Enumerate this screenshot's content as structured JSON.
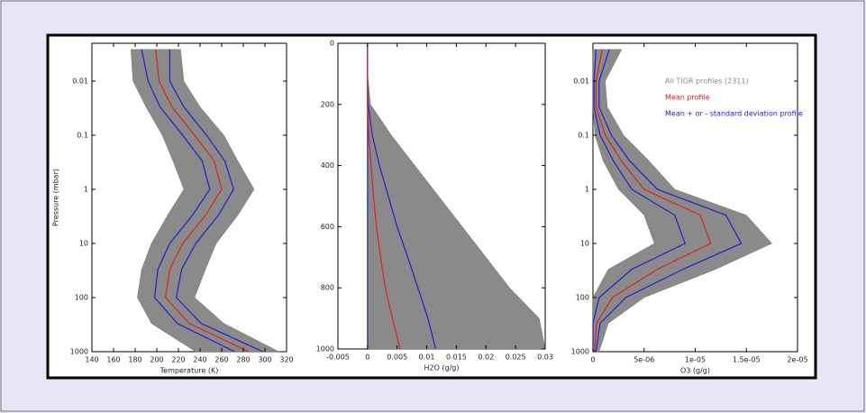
{
  "chart_data": [
    {
      "type": "line",
      "xlabel": "Temperature (K)",
      "ylabel": "Pressure (mbar)",
      "levels": [
        0.0026,
        0.01,
        0.03,
        0.1,
        0.3,
        1,
        3,
        10,
        30,
        100,
        300,
        1000
      ],
      "series": [
        {
          "type": "band",
          "color": "#8a8a8a",
          "low": [
            176,
            178,
            190,
            205,
            215,
            225,
            210,
            195,
            186,
            182,
            195,
            236
          ],
          "values": [
            222,
            225,
            240,
            262,
            275,
            290,
            275,
            255,
            245,
            235,
            262,
            313
          ]
        },
        {
          "color": "#2020d0",
          "values": [
            186,
            192,
            203,
            224,
            242,
            249,
            233,
            212,
            201,
            198,
            219,
            272
          ]
        },
        {
          "color": "#2020d0",
          "values": [
            212,
            212,
            225,
            246,
            263,
            271,
            257,
            236,
            223,
            218,
            241,
            298
          ]
        },
        {
          "color": "#e02020",
          "values": [
            199,
            202,
            214,
            235,
            253,
            260,
            245,
            224,
            212,
            208,
            230,
            285
          ]
        }
      ],
      "xlim": [
        140,
        320
      ],
      "xticks": [
        140,
        160,
        180,
        200,
        220,
        240,
        260,
        280,
        300,
        320
      ],
      "ylim": [
        0.002,
        1000
      ],
      "yticks": [
        0.01,
        0.1,
        1,
        10,
        100,
        1000
      ],
      "ylog": true,
      "yreverse": true
    },
    {
      "type": "line",
      "xlabel": "H2O (g/g)",
      "levels": [
        0,
        100,
        200,
        300,
        400,
        500,
        600,
        700,
        800,
        900,
        1000
      ],
      "series": [
        {
          "type": "band",
          "color": "#8a8a8a",
          "low": [
            0,
            0,
            0,
            0,
            0,
            0,
            0,
            0,
            0,
            0,
            0
          ],
          "values": [
            0,
            0,
            0.0005,
            0.004,
            0.008,
            0.012,
            0.016,
            0.02,
            0.024,
            0.029,
            0.03
          ]
        },
        {
          "color": "#2020d0",
          "values": [
            0,
            0,
            0,
            0,
            0,
            0,
            0,
            0,
            0,
            0,
            0
          ]
        },
        {
          "color": "#2020d0",
          "values": [
            0,
            0,
            0.0001,
            0.0008,
            0.002,
            0.0035,
            0.005,
            0.0068,
            0.0085,
            0.0102,
            0.0115
          ]
        },
        {
          "color": "#e02020",
          "values": [
            0,
            0,
            0,
            0.0002,
            0.0006,
            0.001,
            0.0015,
            0.0022,
            0.003,
            0.0042,
            0.0055
          ]
        }
      ],
      "xlim": [
        -0.005,
        0.03
      ],
      "xticks": [
        -0.005,
        0,
        0.005,
        0.01,
        0.015,
        0.02,
        0.025,
        0.03
      ],
      "ylim": [
        0,
        1000
      ],
      "yticks": [
        0,
        200,
        400,
        600,
        800,
        1000
      ],
      "yreverse": true
    },
    {
      "type": "line",
      "xlabel": "O3 (g/g)",
      "legend": "upper right",
      "levels": [
        0.0026,
        0.01,
        0.03,
        0.1,
        0.3,
        1,
        3,
        10,
        30,
        100,
        300,
        1000
      ],
      "series": [
        {
          "type": "band",
          "name": "All TIGR profiles (2311)",
          "color": "#8a8a8a",
          "low": [
            0,
            0,
            0,
            2e-07,
            1e-06,
            2.5e-06,
            5e-06,
            6e-06,
            1.5e-06,
            0,
            0,
            0
          ],
          "values": [
            2.8e-06,
            1.2e-06,
            1.4e-06,
            3e-06,
            5.5e-06,
            8e-06,
            1.5e-05,
            1.75e-05,
            1.2e-05,
            5e-06,
            1.5e-06,
            6e-07
          ]
        },
        {
          "name": "Mean profile",
          "color": "#e02020",
          "values": [
            9e-07,
            3e-07,
            3e-07,
            1.2e-06,
            2.8e-06,
            5e-06,
            1.05e-05,
            1.15e-05,
            6.3e-06,
            1.9e-06,
            3.5e-07,
            1.5e-07
          ]
        },
        {
          "name": "Mean + or - standard deviation profile",
          "color": "#2020d0",
          "values": [
            1.6e-06,
            6e-07,
            6e-07,
            1.8e-06,
            3.6e-06,
            6.3e-06,
            1.3e-05,
            1.45e-05,
            8.8e-06,
            3.2e-06,
            7e-07,
            3e-07
          ]
        },
        {
          "color": "#2020d0",
          "values": [
            3e-07,
            1e-07,
            1e-07,
            7e-07,
            2e-06,
            3.8e-06,
            8e-06,
            9e-06,
            3.8e-06,
            6e-07,
            0,
            0
          ]
        }
      ],
      "xlim": [
        0,
        2e-05
      ],
      "xticks": [
        0,
        {
          "value": 5e-06,
          "label": "5e-06"
        },
        {
          "value": 1e-05,
          "label": "1e-05"
        },
        {
          "value": 1.5e-05,
          "label": "1.5e-05"
        },
        {
          "value": 2e-05,
          "label": "2e-05"
        }
      ],
      "ylim": [
        0.002,
        1000
      ],
      "yticks": [
        0.01,
        0.1,
        1,
        10,
        100,
        1000
      ],
      "ylog": true,
      "yreverse": true
    }
  ]
}
